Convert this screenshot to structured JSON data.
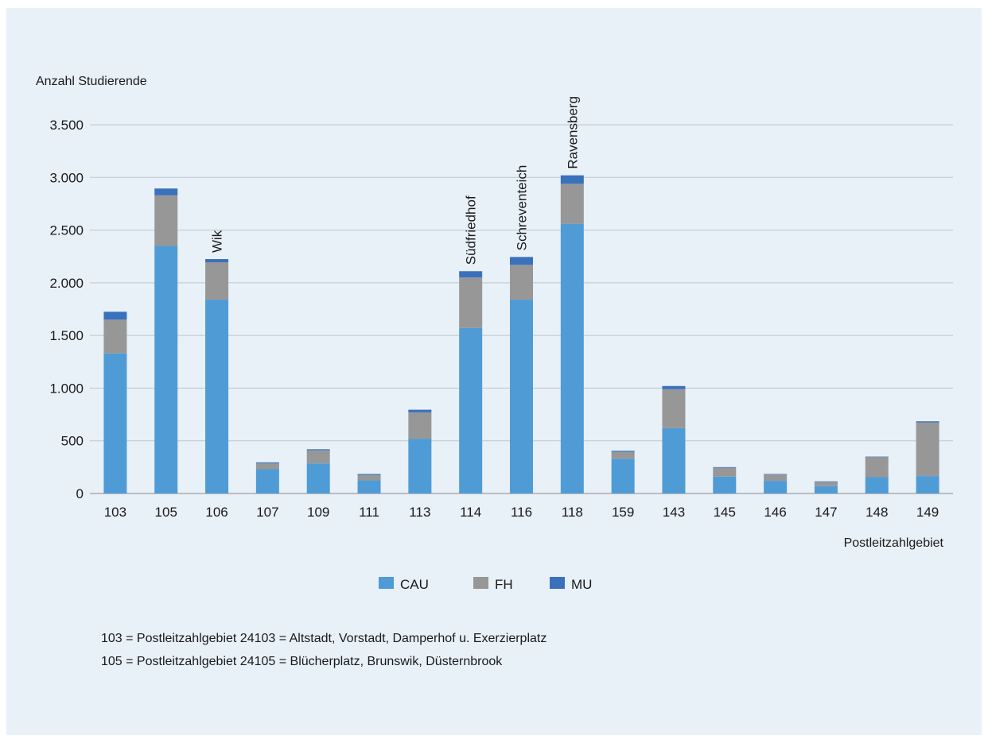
{
  "chart_data": {
    "type": "bar",
    "stacked": true,
    "ylabel": "Anzahl Studierende",
    "xlabel": "Postleitzahlgebiet",
    "ylim": [
      0,
      3500
    ],
    "yticks": [
      0,
      500,
      1000,
      1500,
      2000,
      2500,
      3000,
      3500
    ],
    "ytick_labels": [
      "0",
      "500",
      "1.000",
      "1.500",
      "2.000",
      "2.500",
      "3.000",
      "3.500"
    ],
    "grid": true,
    "legend_position": "bottom-center",
    "categories": [
      "103",
      "105",
      "106",
      "107",
      "109",
      "111",
      "113",
      "114",
      "116",
      "118",
      "159",
      "143",
      "145",
      "146",
      "147",
      "148",
      "149"
    ],
    "series": [
      {
        "name": "CAU",
        "color": "#4f9bd6",
        "values": [
          1330,
          2350,
          1840,
          230,
          285,
          125,
          520,
          1570,
          1840,
          2560,
          330,
          620,
          160,
          120,
          70,
          155,
          165
        ]
      },
      {
        "name": "FH",
        "color": "#979797",
        "values": [
          320,
          480,
          355,
          55,
          125,
          50,
          250,
          480,
          330,
          380,
          65,
          370,
          85,
          60,
          40,
          190,
          510
        ]
      },
      {
        "name": "MU",
        "color": "#3a71bd",
        "values": [
          75,
          65,
          30,
          10,
          10,
          10,
          25,
          60,
          75,
          80,
          10,
          30,
          5,
          5,
          5,
          5,
          10
        ]
      }
    ],
    "annotations": [
      {
        "category": "106",
        "text": "Wik"
      },
      {
        "category": "114",
        "text": "Südfriedhof"
      },
      {
        "category": "116",
        "text": "Schreventeich"
      },
      {
        "category": "118",
        "text": "Ravensberg"
      }
    ]
  },
  "footnotes": [
    "103 = Postleitzahlgebiet 24103 = Altstadt, Vorstadt, Damperhof u. Exerzierplatz",
    "105 = Postleitzahlgebiet 24105 = Blücherplatz, Brunswik, Düsternbrook"
  ]
}
